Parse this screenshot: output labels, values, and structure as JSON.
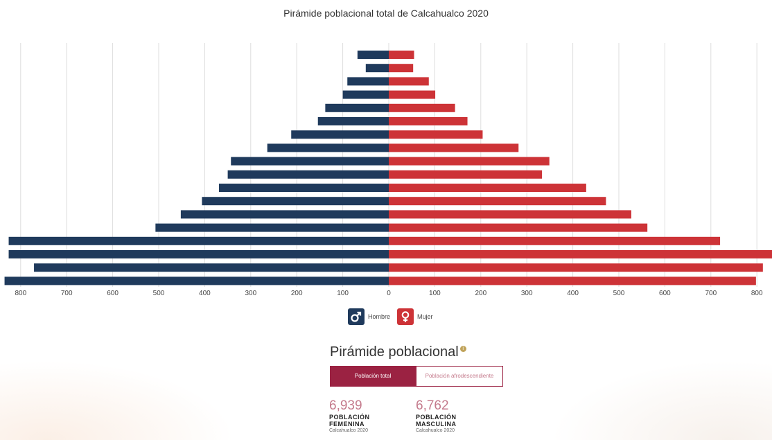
{
  "chart_data": {
    "type": "bar",
    "title": "Pirámide poblacional total de Calcahualco 2020",
    "orientation": "horizontal-population-pyramid",
    "xlim": [
      -830,
      830
    ],
    "left_ticks": [
      "800",
      "700",
      "600",
      "500",
      "400",
      "300",
      "200",
      "100"
    ],
    "right_ticks": [
      "0",
      "100",
      "200",
      "300",
      "400",
      "500",
      "600",
      "700",
      "800"
    ],
    "tick_values": [
      -800,
      -700,
      -600,
      -500,
      -400,
      -300,
      -200,
      -100,
      0,
      100,
      200,
      300,
      400,
      500,
      600,
      700,
      800
    ],
    "grid": true,
    "legend": "bottom-center",
    "series": [
      {
        "name": "Hombre",
        "side": "left",
        "color": "#1f3a5c",
        "values": [
          68,
          50,
          90,
          100,
          138,
          154,
          212,
          264,
          343,
          350,
          369,
          406,
          452,
          507,
          826,
          826,
          771,
          835
        ]
      },
      {
        "name": "Mujer",
        "side": "right",
        "color": "#cd3337",
        "values": [
          55,
          53,
          87,
          101,
          144,
          171,
          204,
          282,
          349,
          333,
          429,
          472,
          527,
          562,
          720,
          840,
          813,
          798
        ]
      }
    ]
  },
  "legend_items": [
    {
      "label": "Hombre",
      "icon": "male-symbol-icon",
      "color": "#1f3a5c",
      "glyph": "♂"
    },
    {
      "label": "Mujer",
      "icon": "female-symbol-icon",
      "color": "#cd3337",
      "glyph": "♀"
    }
  ],
  "section": {
    "title": "Pirámide poblacional",
    "info_glyph": "i",
    "tab_active": "Población total",
    "tab_inactive": "Población afrodescendiente",
    "accent": "#9b2242"
  },
  "stats": [
    {
      "value": "6,939",
      "label": "POBLACIÓN FEMENINA",
      "sub": "Calcahualco 2020"
    },
    {
      "value": "6,762",
      "label": "POBLACIÓN MASCULINA",
      "sub": "Calcahualco 2020"
    }
  ]
}
